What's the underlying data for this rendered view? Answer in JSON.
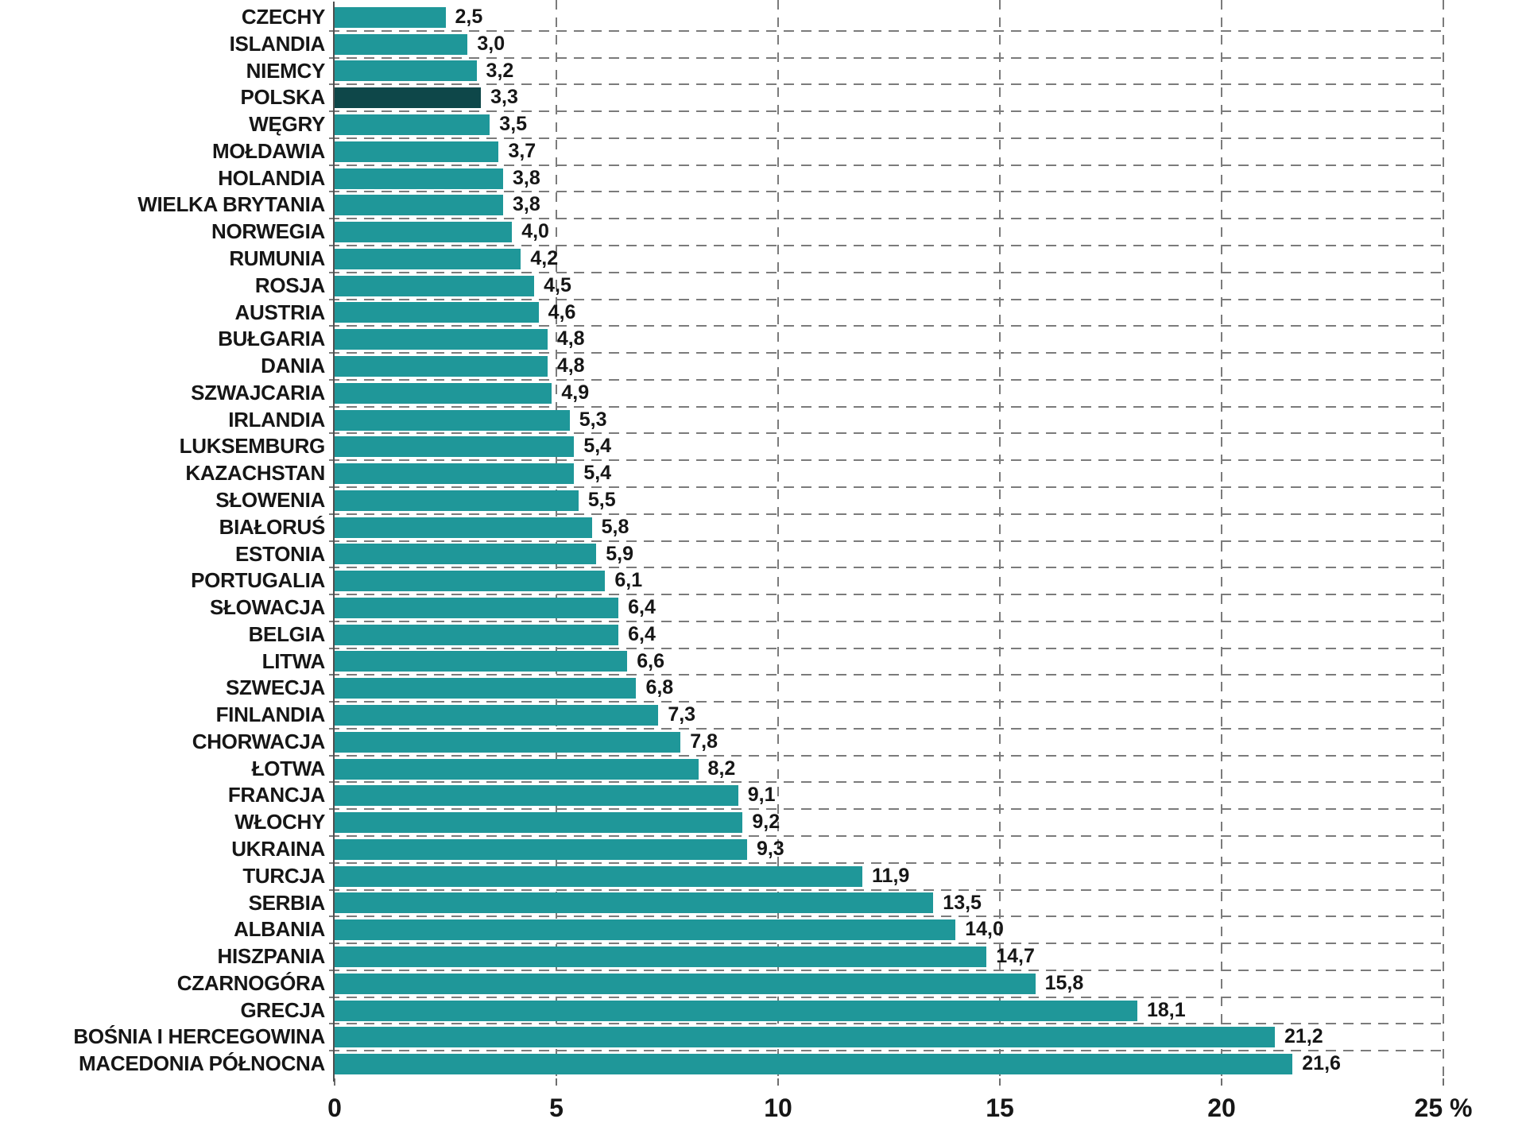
{
  "chart_data": {
    "type": "bar",
    "orientation": "horizontal",
    "title": "",
    "xlabel": "",
    "ylabel": "",
    "unit": "%",
    "xlim": [
      0,
      25
    ],
    "grid": "dashed",
    "legend": "none",
    "highlight_category": "POLSKA",
    "x_ticks": [
      {
        "value": 0,
        "label": "0"
      },
      {
        "value": 5,
        "label": "5"
      },
      {
        "value": 10,
        "label": "10"
      },
      {
        "value": 15,
        "label": "15"
      },
      {
        "value": 20,
        "label": "20"
      },
      {
        "value": 25,
        "label": "25 %"
      }
    ],
    "categories": [
      "CZECHY",
      "ISLANDIA",
      "NIEMCY",
      "POLSKA",
      "WĘGRY",
      "MOŁDAWIA",
      "HOLANDIA",
      "WIELKA BRYTANIA",
      "NORWEGIA",
      "RUMUNIA",
      "ROSJA",
      "AUSTRIA",
      "BUŁGARIA",
      "DANIA",
      "SZWAJCARIA",
      "IRLANDIA",
      "LUKSEMBURG",
      "KAZACHSTAN",
      "SŁOWENIA",
      "BIAŁORUŚ",
      "ESTONIA",
      "PORTUGALIA",
      "SŁOWACJA",
      "BELGIA",
      "LITWA",
      "SZWECJA",
      "FINLANDIA",
      "CHORWACJA",
      "ŁOTWA",
      "FRANCJA",
      "WŁOCHY",
      "UKRAINA",
      "TURCJA",
      "SERBIA",
      "ALBANIA",
      "HISZPANIA",
      "CZARNOGÓRA",
      "GRECJA",
      "BOŚNIA I HERCEGOWINA",
      "MACEDONIA PÓŁNOCNA"
    ],
    "values": [
      2.5,
      3.0,
      3.2,
      3.3,
      3.5,
      3.7,
      3.8,
      3.8,
      4.0,
      4.2,
      4.5,
      4.6,
      4.8,
      4.8,
      4.9,
      5.3,
      5.4,
      5.4,
      5.5,
      5.8,
      5.9,
      6.1,
      6.4,
      6.4,
      6.6,
      6.8,
      7.3,
      7.8,
      8.2,
      9.1,
      9.2,
      9.3,
      11.9,
      13.5,
      14.0,
      14.7,
      15.8,
      18.1,
      21.2,
      21.6
    ],
    "value_labels": [
      "2,5",
      "3,0",
      "3,2",
      "3,3",
      "3,5",
      "3,7",
      "3,8",
      "3,8",
      "4,0",
      "4,2",
      "4,5",
      "4,6",
      "4,8",
      "4,8",
      "4,9",
      "5,3",
      "5,4",
      "5,4",
      "5,5",
      "5,8",
      "5,9",
      "6,1",
      "6,4",
      "6,4",
      "6,6",
      "6,8",
      "7,3",
      "7,8",
      "8,2",
      "9,1",
      "9,2",
      "9,3",
      "11,9",
      "13,5",
      "14,0",
      "14,7",
      "15,8",
      "18,1",
      "21,2",
      "21,6"
    ]
  },
  "colors": {
    "bar": "#1f9799",
    "highlight_bar": "#0e4749",
    "text": "#161616",
    "grid": "#7b7b7b",
    "axis": "#4f4f4f",
    "background": "#ffffff"
  }
}
